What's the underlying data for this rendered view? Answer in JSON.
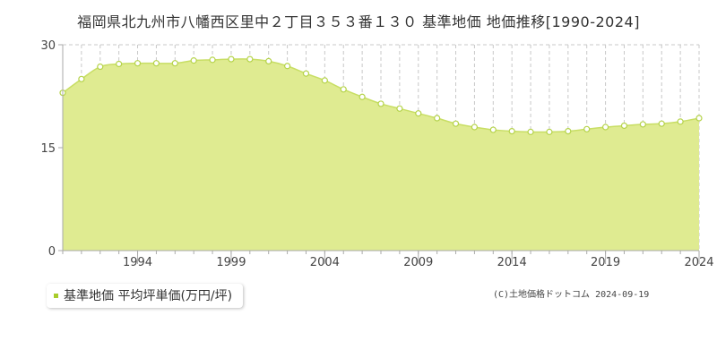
{
  "title": "福岡県北九州市八幡西区里中２丁目３５３番１３０ 基準地価 地価推移[1990-2024]",
  "legend": {
    "label": "基準地価 平均坪単価(万円/坪)"
  },
  "credit": "(C)土地価格ドットコム 2024-09-19",
  "colors": {
    "fill": "#dfeb91",
    "line": "#c8de64",
    "marker_stroke": "#b5d34a",
    "marker_fill": "#ffffff",
    "legend": "#a8cc2b"
  },
  "chart_data": {
    "type": "area",
    "x": [
      1990,
      1991,
      1992,
      1993,
      1994,
      1995,
      1996,
      1997,
      1998,
      1999,
      2000,
      2001,
      2002,
      2003,
      2004,
      2005,
      2006,
      2007,
      2008,
      2009,
      2010,
      2011,
      2012,
      2013,
      2014,
      2015,
      2016,
      2017,
      2018,
      2019,
      2020,
      2021,
      2022,
      2023,
      2024
    ],
    "series": [
      {
        "values": [
          23.0,
          25.0,
          26.8,
          27.2,
          27.3,
          27.3,
          27.3,
          27.7,
          27.8,
          27.9,
          27.9,
          27.6,
          26.9,
          25.8,
          24.8,
          23.5,
          22.4,
          21.4,
          20.7,
          20.0,
          19.3,
          18.5,
          18.0,
          17.6,
          17.4,
          17.3,
          17.3,
          17.4,
          17.7,
          18.0,
          18.2,
          18.4,
          18.5,
          18.8,
          19.3
        ]
      }
    ],
    "xticks": [
      "1994",
      "1999",
      "2004",
      "2009",
      "2014",
      "2019",
      "2024"
    ],
    "yticks": [
      "0",
      "15",
      "30"
    ],
    "ylim": [
      0,
      30
    ],
    "xlim": [
      1990,
      2024
    ],
    "grid": true
  }
}
